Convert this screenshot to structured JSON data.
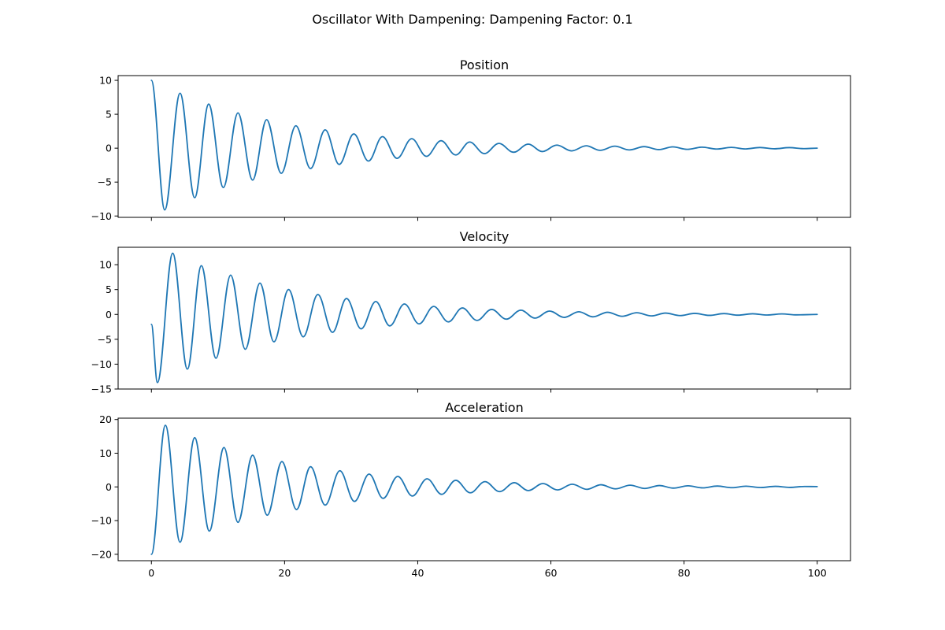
{
  "figure": {
    "title": "Oscillator With Dampening: Dampening Factor: 0.1"
  },
  "chart_data": [
    {
      "type": "line",
      "title": "Position",
      "xlim": [
        -5,
        105
      ],
      "ylim": [
        -10.2,
        10.7
      ],
      "x_ticks": [
        0,
        20,
        40,
        60,
        80,
        100
      ],
      "x_tick_labels": [],
      "y_ticks": [
        -10,
        -5,
        0,
        5,
        10
      ],
      "y_tick_labels": [
        "−10",
        "−5",
        "0",
        "5",
        "10"
      ],
      "series": [
        {
          "color": "#1f77b4",
          "x": [
            0,
            2,
            4.3,
            6.5,
            8.6,
            10.8,
            13.0,
            15.2,
            17.3,
            19.5,
            21.7,
            23.9,
            26.1,
            28.2,
            30.4,
            32.6,
            34.7,
            36.9,
            39.1,
            41.3,
            43.5,
            45.7,
            47.8,
            50.0,
            52.2,
            54.4,
            56.6,
            58.7,
            60.9,
            63.1,
            65.3,
            67.4,
            69.6,
            71.8,
            74.0,
            76.2,
            78.3,
            80.5,
            82.7,
            84.9,
            87.1,
            89.2,
            91.4,
            93.6,
            95.8,
            98.0,
            100
          ],
          "y": [
            10,
            -9.1,
            8.1,
            -7.3,
            6.5,
            -5.8,
            5.2,
            -4.7,
            4.2,
            -3.7,
            3.3,
            -3.0,
            2.7,
            -2.4,
            2.1,
            -1.9,
            1.7,
            -1.5,
            1.4,
            -1.2,
            1.1,
            -1.0,
            0.9,
            -0.8,
            0.7,
            -0.6,
            0.6,
            -0.5,
            0.45,
            -0.4,
            0.35,
            -0.32,
            0.29,
            -0.26,
            0.23,
            -0.21,
            0.19,
            -0.17,
            0.15,
            -0.13,
            0.12,
            -0.11,
            0.1,
            -0.09,
            0.08,
            -0.07,
            0.0
          ]
        }
      ]
    },
    {
      "type": "line",
      "title": "Velocity",
      "xlim": [
        -5,
        105
      ],
      "ylim": [
        -15,
        13.5
      ],
      "x_ticks": [
        0,
        20,
        40,
        60,
        80,
        100
      ],
      "x_tick_labels": [],
      "y_ticks": [
        -15,
        -10,
        -5,
        0,
        5,
        10
      ],
      "y_tick_labels": [
        "−15",
        "−10",
        "−5",
        "0",
        "5",
        "10"
      ],
      "series": [
        {
          "color": "#1f77b4",
          "x": [
            0,
            0.9,
            3.2,
            5.4,
            7.5,
            9.7,
            11.9,
            14.1,
            16.3,
            18.4,
            20.6,
            22.8,
            25.0,
            27.2,
            29.3,
            31.5,
            33.7,
            35.8,
            38.0,
            40.2,
            42.4,
            44.6,
            46.7,
            48.9,
            51.1,
            53.3,
            55.5,
            57.6,
            59.8,
            62.0,
            64.2,
            66.3,
            68.5,
            70.7,
            72.9,
            75.1,
            77.2,
            79.4,
            81.6,
            83.8,
            86.0,
            88.1,
            90.3,
            92.5,
            94.7,
            96.9,
            100
          ],
          "y": [
            -2,
            -13.7,
            12.3,
            -11.0,
            9.8,
            -8.8,
            7.9,
            -7.0,
            6.3,
            -5.5,
            5.0,
            -4.5,
            4.0,
            -3.6,
            3.2,
            -2.9,
            2.6,
            -2.3,
            2.1,
            -1.9,
            1.6,
            -1.5,
            1.3,
            -1.2,
            1.0,
            -0.95,
            0.85,
            -0.75,
            0.68,
            -0.6,
            0.54,
            -0.48,
            0.43,
            -0.38,
            0.34,
            -0.3,
            0.27,
            -0.24,
            0.21,
            -0.19,
            0.17,
            -0.15,
            0.13,
            -0.12,
            0.1,
            -0.09,
            0.0
          ]
        }
      ]
    },
    {
      "type": "line",
      "title": "Acceleration",
      "xlim": [
        -5,
        105
      ],
      "ylim": [
        -21.9,
        20.4
      ],
      "x_ticks": [
        0,
        20,
        40,
        60,
        80,
        100
      ],
      "x_tick_labels": [
        "0",
        "20",
        "40",
        "60",
        "80",
        "100"
      ],
      "y_ticks": [
        -20,
        -10,
        0,
        10,
        20
      ],
      "y_tick_labels": [
        "−20",
        "−10",
        "0",
        "10",
        "20"
      ],
      "series": [
        {
          "color": "#1f77b4",
          "x": [
            0,
            2.1,
            4.3,
            6.5,
            8.7,
            10.9,
            13.0,
            15.2,
            17.4,
            19.6,
            21.8,
            23.9,
            26.1,
            28.3,
            30.5,
            32.7,
            34.8,
            37.0,
            39.2,
            41.4,
            43.6,
            45.7,
            47.9,
            50.1,
            52.3,
            54.5,
            56.6,
            58.8,
            61.0,
            63.2,
            65.4,
            67.5,
            69.7,
            71.9,
            74.1,
            76.3,
            78.4,
            80.6,
            82.8,
            85.0,
            87.2,
            89.3,
            91.5,
            93.7,
            95.9,
            98.1,
            100
          ],
          "y": [
            -20,
            18.3,
            -16.4,
            14.6,
            -13.1,
            11.7,
            -10.5,
            9.4,
            -8.4,
            7.5,
            -6.7,
            6.0,
            -5.4,
            4.8,
            -4.3,
            3.8,
            -3.4,
            3.1,
            -2.7,
            2.4,
            -2.2,
            1.95,
            -1.75,
            1.55,
            -1.4,
            1.25,
            -1.1,
            1.0,
            -0.9,
            0.8,
            -0.72,
            0.64,
            -0.57,
            0.51,
            -0.46,
            0.41,
            -0.36,
            0.33,
            -0.29,
            0.26,
            -0.23,
            0.21,
            -0.19,
            0.17,
            -0.15,
            0.13,
            0.1
          ]
        }
      ]
    }
  ]
}
